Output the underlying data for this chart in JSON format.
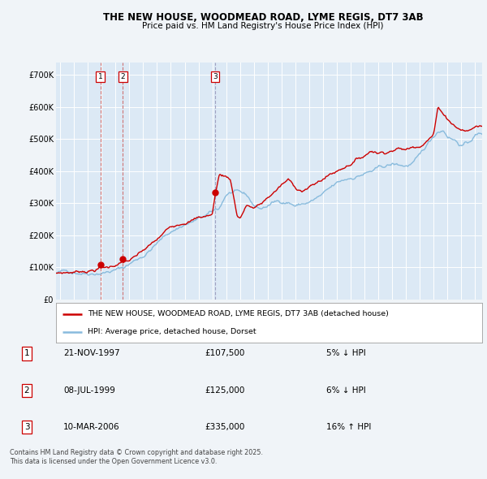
{
  "title1": "THE NEW HOUSE, WOODMEAD ROAD, LYME REGIS, DT7 3AB",
  "title2": "Price paid vs. HM Land Registry's House Price Index (HPI)",
  "ylabel_ticks": [
    "£0",
    "£100K",
    "£200K",
    "£300K",
    "£400K",
    "£500K",
    "£600K",
    "£700K"
  ],
  "ytick_vals": [
    0,
    100000,
    200000,
    300000,
    400000,
    500000,
    600000,
    700000
  ],
  "ylim": [
    0,
    740000
  ],
  "xlim_start": 1994.7,
  "xlim_end": 2025.5,
  "fig_bg_color": "#f0f4f8",
  "plot_bg_color": "#dce9f5",
  "grid_color": "#ffffff",
  "red_line_color": "#cc0000",
  "blue_line_color": "#88bbdd",
  "purchases": [
    {
      "date": 1997.9,
      "price": 107500,
      "label": "1",
      "vline_color": "#cc6666"
    },
    {
      "date": 1999.54,
      "price": 125000,
      "label": "2",
      "vline_color": "#cc6666"
    },
    {
      "date": 2006.19,
      "price": 335000,
      "label": "3",
      "vline_color": "#9999bb"
    }
  ],
  "table_rows": [
    {
      "num": "1",
      "date": "21-NOV-1997",
      "price": "£107,500",
      "pct": "5%",
      "dir": "↓",
      "rel": "HPI"
    },
    {
      "num": "2",
      "date": "08-JUL-1999",
      "price": "£125,000",
      "pct": "6%",
      "dir": "↓",
      "rel": "HPI"
    },
    {
      "num": "3",
      "date": "10-MAR-2006",
      "price": "£335,000",
      "pct": "16%",
      "dir": "↑",
      "rel": "HPI"
    }
  ],
  "legend_red": "THE NEW HOUSE, WOODMEAD ROAD, LYME REGIS, DT7 3AB (detached house)",
  "legend_blue": "HPI: Average price, detached house, Dorset",
  "footer": "Contains HM Land Registry data © Crown copyright and database right 2025.\nThis data is licensed under the Open Government Licence v3.0."
}
